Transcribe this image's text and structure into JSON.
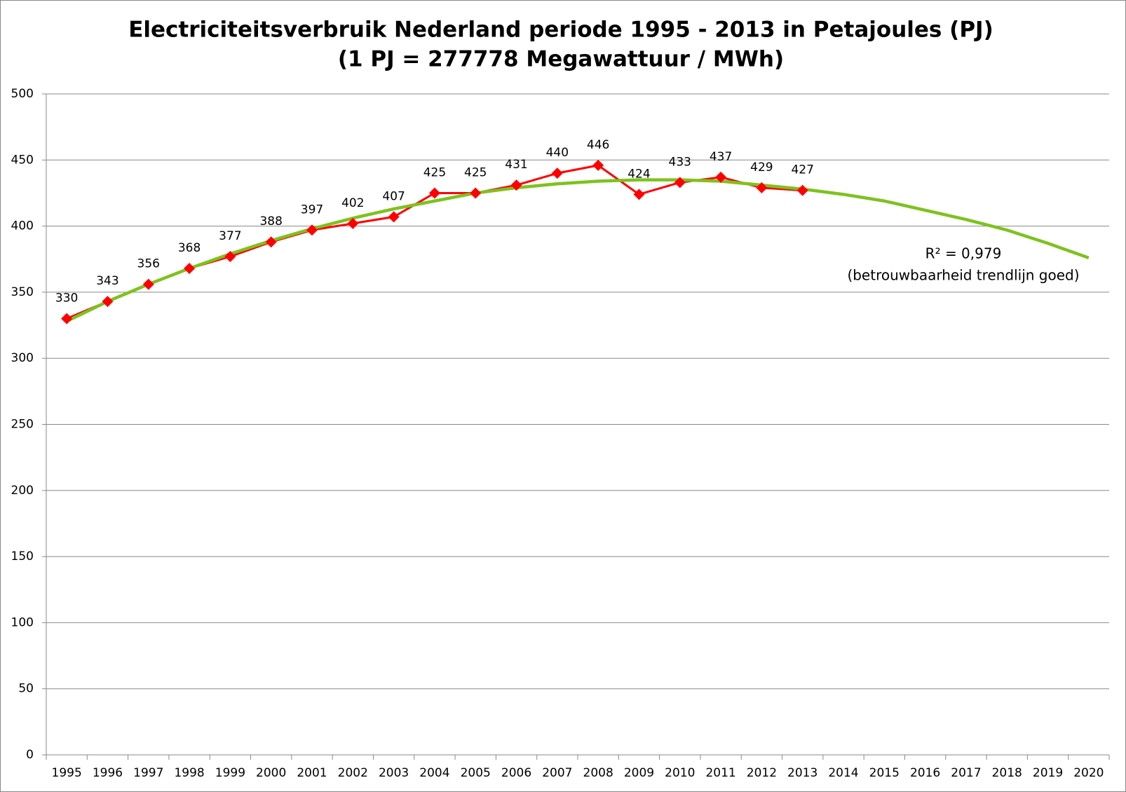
{
  "chart_data": {
    "type": "line",
    "title": "Electriciteitsverbruik Nederland periode 1995 - 2013 in Petajoules (PJ)",
    "subtitle": "(1 PJ = 277778 Megawattuur / MWh)",
    "categories": [
      "1995",
      "1996",
      "1997",
      "1998",
      "1999",
      "2000",
      "2001",
      "2002",
      "2003",
      "2004",
      "2005",
      "2006",
      "2007",
      "2008",
      "2009",
      "2010",
      "2011",
      "2012",
      "2013",
      "2014",
      "2015",
      "2016",
      "2017",
      "2018",
      "2019",
      "2020"
    ],
    "series": [
      {
        "color": "#ff0000",
        "marker": "diamond",
        "data_labels": true,
        "values": [
          330,
          343,
          356,
          368,
          377,
          388,
          397,
          402,
          407,
          425,
          425,
          431,
          440,
          446,
          424,
          433,
          437,
          429,
          427,
          null,
          null,
          null,
          null,
          null,
          null,
          null
        ]
      },
      {
        "color": "#7dc21e",
        "marker": "none",
        "data_labels": false,
        "values": [
          328,
          343,
          356,
          368,
          379,
          389,
          398,
          406,
          413,
          419,
          425,
          429,
          432,
          434,
          435,
          435,
          434,
          431,
          428,
          424,
          419,
          412,
          405,
          397,
          387,
          376
        ]
      }
    ],
    "annotations": [
      "R² = 0,979",
      "(betrouwbaarheid trendlijn goed)"
    ],
    "ylim": [
      0,
      500
    ],
    "yticks": [
      0,
      50,
      100,
      150,
      200,
      250,
      300,
      350,
      400,
      450,
      500
    ],
    "grid": true
  }
}
